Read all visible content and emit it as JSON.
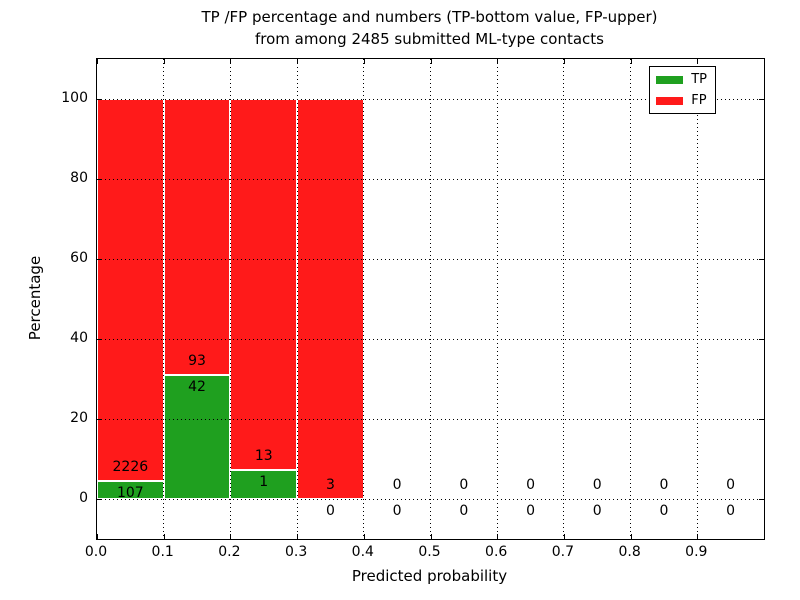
{
  "title": {
    "line1": "TP /FP percentage and numbers (TP-bottom value, FP-upper)",
    "line2": "from among 2485 submitted ML-type contacts"
  },
  "axes": {
    "xlabel": "Predicted probability",
    "ylabel": "Percentage",
    "xticks": [
      "0.0",
      "0.1",
      "0.2",
      "0.3",
      "0.4",
      "0.5",
      "0.6",
      "0.7",
      "0.8",
      "0.9"
    ],
    "xtick_values": [
      0,
      0.1,
      0.2,
      0.3,
      0.4,
      0.5,
      0.6,
      0.7,
      0.8,
      0.9
    ],
    "yticks": [
      "0",
      "20",
      "40",
      "60",
      "80",
      "100"
    ],
    "ytick_values": [
      0,
      20,
      40,
      60,
      80,
      100
    ],
    "xlim": [
      0,
      1
    ],
    "ylim": [
      -10,
      110
    ],
    "grid_style": "dotted",
    "grid_color": "#000000"
  },
  "legend": {
    "position": "upper-right",
    "items": [
      {
        "label": "TP",
        "color": "#1fa01f"
      },
      {
        "label": "FP",
        "color": "#ff1a1a"
      }
    ]
  },
  "chart_data": {
    "type": "bar",
    "stacked": true,
    "total_contacts": 2485,
    "bin_width": 0.1,
    "categories": [
      "0.0-0.1",
      "0.1-0.2",
      "0.2-0.3",
      "0.3-0.4",
      "0.4-0.5",
      "0.5-0.6",
      "0.6-0.7",
      "0.7-0.8",
      "0.8-0.9",
      "0.9-1.0"
    ],
    "series": [
      {
        "name": "TP",
        "color": "#1fa01f",
        "counts": [
          107,
          42,
          1,
          0,
          0,
          0,
          0,
          0,
          0,
          0
        ],
        "pct": [
          4.59,
          31.11,
          7.14,
          0,
          0,
          0,
          0,
          0,
          0,
          0
        ]
      },
      {
        "name": "FP",
        "color": "#ff1a1a",
        "counts": [
          2226,
          93,
          13,
          3,
          0,
          0,
          0,
          0,
          0,
          0
        ],
        "pct": [
          95.41,
          68.89,
          92.86,
          100,
          0,
          0,
          0,
          0,
          0,
          0
        ]
      }
    ]
  }
}
